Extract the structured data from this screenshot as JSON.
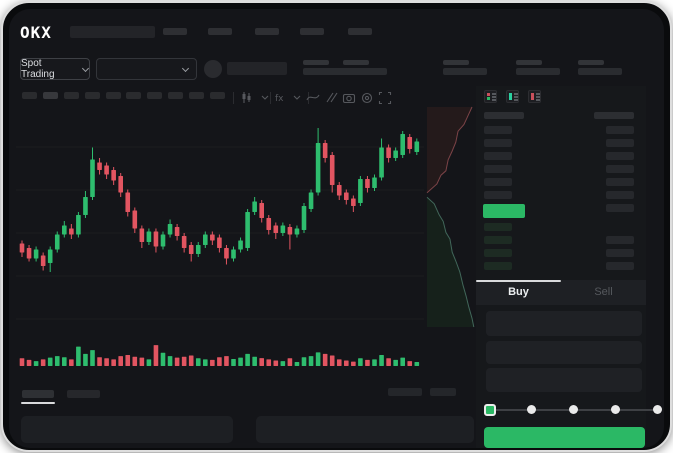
{
  "window": {
    "frame_color": "#dedede",
    "bezel_color": "#0a0b0d",
    "app_bg": "#141519"
  },
  "header": {
    "logo_text": "OKX",
    "nav_placeholder_count": 5
  },
  "market_row": {
    "market_selector_label": "Spot Trading",
    "pair_selector_collapsed": true,
    "stat_placeholder_count": 5
  },
  "chart_toolbar": {
    "timeframe_placeholder_count": 10,
    "icons": [
      "candle-type-icon",
      "chevron-down-icon",
      "indicators-fx-icon",
      "chevron-down-icon",
      "line-style-icon",
      "compare-icon",
      "camera-icon",
      "settings-icon",
      "fullscreen-icon"
    ]
  },
  "orderbook": {
    "view_mode_icons": [
      "orderbook-combined-icon",
      "orderbook-bids-icon",
      "orderbook-asks-icon"
    ],
    "ask_row_count": 7,
    "bid_row_count": 4,
    "highlighted_price_color": "#2bb865"
  },
  "trade_panel": {
    "tabs": [
      {
        "label": "Buy",
        "active": true
      },
      {
        "label": "Sell",
        "active": false
      }
    ],
    "field_count": 3,
    "slider": {
      "positions": 5,
      "selected_index": 0
    }
  },
  "bottom_bar": {
    "tab_placeholder_count": 2,
    "right_placeholder_count": 2,
    "panel_count": 2
  },
  "colors": {
    "green": "#2bb865",
    "candle_green": "#2ebd6e",
    "candle_red": "#e25561",
    "buy_tab_text": "#eceff1",
    "sell_tab_text": "#55585d",
    "depth_ask_fill": "#241a1b",
    "depth_ask_line": "#7c4347",
    "depth_bid_fill": "#16211b",
    "depth_bid_line": "#41675a"
  },
  "chart_data": {
    "type": "candlestick+volume+depth",
    "title": "",
    "value_scale": "relative 0-100 (no axis labels visible)",
    "candle_format": [
      "open",
      "close",
      "high",
      "low"
    ],
    "candles": [
      [
        23,
        17,
        25,
        14
      ],
      [
        20,
        13,
        22,
        11
      ],
      [
        13,
        19,
        21,
        11
      ],
      [
        15,
        8,
        17,
        5
      ],
      [
        10,
        19,
        21,
        4
      ],
      [
        19,
        29,
        31,
        17
      ],
      [
        29,
        35,
        38,
        27
      ],
      [
        33,
        29,
        36,
        26
      ],
      [
        29,
        42,
        44,
        27
      ],
      [
        42,
        54,
        58,
        40
      ],
      [
        54,
        79,
        87,
        52
      ],
      [
        77,
        72,
        80,
        69
      ],
      [
        75,
        69,
        77,
        66
      ],
      [
        72,
        65,
        74,
        62
      ],
      [
        68,
        57,
        70,
        54
      ],
      [
        57,
        44,
        59,
        41
      ],
      [
        45,
        33,
        47,
        30
      ],
      [
        33,
        24,
        35,
        20
      ],
      [
        24,
        31,
        33,
        22
      ],
      [
        31,
        21,
        33,
        17
      ],
      [
        21,
        29,
        31,
        19
      ],
      [
        29,
        36,
        39,
        27
      ],
      [
        34,
        28,
        36,
        25
      ],
      [
        28,
        20,
        30,
        17
      ],
      [
        22,
        16,
        24,
        11
      ],
      [
        16,
        22,
        24,
        14
      ],
      [
        22,
        29,
        31,
        20
      ],
      [
        29,
        25,
        31,
        22
      ],
      [
        27,
        20,
        29,
        17
      ],
      [
        20,
        13,
        22,
        9
      ],
      [
        13,
        19,
        21,
        11
      ],
      [
        19,
        25,
        27,
        17
      ],
      [
        20,
        44,
        46,
        18
      ],
      [
        44,
        51,
        54,
        42
      ],
      [
        50,
        40,
        52,
        37
      ],
      [
        40,
        32,
        42,
        29
      ],
      [
        35,
        30,
        37,
        26
      ],
      [
        30,
        35,
        37,
        28
      ],
      [
        34,
        29,
        36,
        19
      ],
      [
        29,
        33,
        35,
        27
      ],
      [
        32,
        48,
        50,
        30
      ],
      [
        46,
        57,
        59,
        44
      ],
      [
        57,
        90,
        100,
        55
      ],
      [
        90,
        80,
        92,
        77
      ],
      [
        82,
        62,
        84,
        57
      ],
      [
        62,
        55,
        64,
        52
      ],
      [
        57,
        52,
        59,
        49
      ],
      [
        53,
        48,
        55,
        44
      ],
      [
        50,
        66,
        68,
        48
      ],
      [
        66,
        60,
        68,
        57
      ],
      [
        60,
        67,
        69,
        58
      ],
      [
        67,
        87,
        93,
        65
      ],
      [
        87,
        80,
        89,
        77
      ],
      [
        80,
        85,
        87,
        78
      ],
      [
        82,
        96,
        98,
        80
      ],
      [
        94,
        86,
        96,
        83
      ],
      [
        84,
        91,
        93,
        82
      ]
    ],
    "volumes": [
      35,
      28,
      22,
      30,
      38,
      45,
      40,
      30,
      88,
      55,
      72,
      40,
      35,
      30,
      45,
      50,
      42,
      38,
      30,
      95,
      60,
      45,
      38,
      42,
      48,
      35,
      30,
      28,
      40,
      45,
      32,
      38,
      55,
      42,
      36,
      30,
      25,
      22,
      35,
      18,
      40,
      45,
      62,
      55,
      48,
      30,
      25,
      20,
      35,
      28,
      30,
      50,
      35,
      28,
      38,
      22,
      18
    ],
    "grid": true,
    "depth": {
      "orientation": "vertical",
      "asks_line": [
        [
          0,
          0.61
        ],
        [
          0.22,
          0.65
        ],
        [
          0.31,
          0.69
        ],
        [
          0.42,
          0.71
        ],
        [
          0.47,
          0.76
        ],
        [
          0.56,
          0.8
        ],
        [
          0.64,
          0.84
        ],
        [
          0.69,
          0.89
        ],
        [
          0.82,
          0.92
        ],
        [
          0.91,
          0.96
        ],
        [
          1,
          1
        ]
      ],
      "bids_line": [
        [
          0,
          0.59
        ],
        [
          0.16,
          0.56
        ],
        [
          0.27,
          0.51
        ],
        [
          0.36,
          0.48
        ],
        [
          0.42,
          0.43
        ],
        [
          0.51,
          0.4
        ],
        [
          0.56,
          0.34
        ],
        [
          0.64,
          0.3
        ],
        [
          0.73,
          0.25
        ],
        [
          0.8,
          0.19
        ],
        [
          0.87,
          0.14
        ],
        [
          0.93,
          0.09
        ],
        [
          1,
          0.04
        ],
        [
          1.04,
          0.0
        ]
      ]
    }
  }
}
